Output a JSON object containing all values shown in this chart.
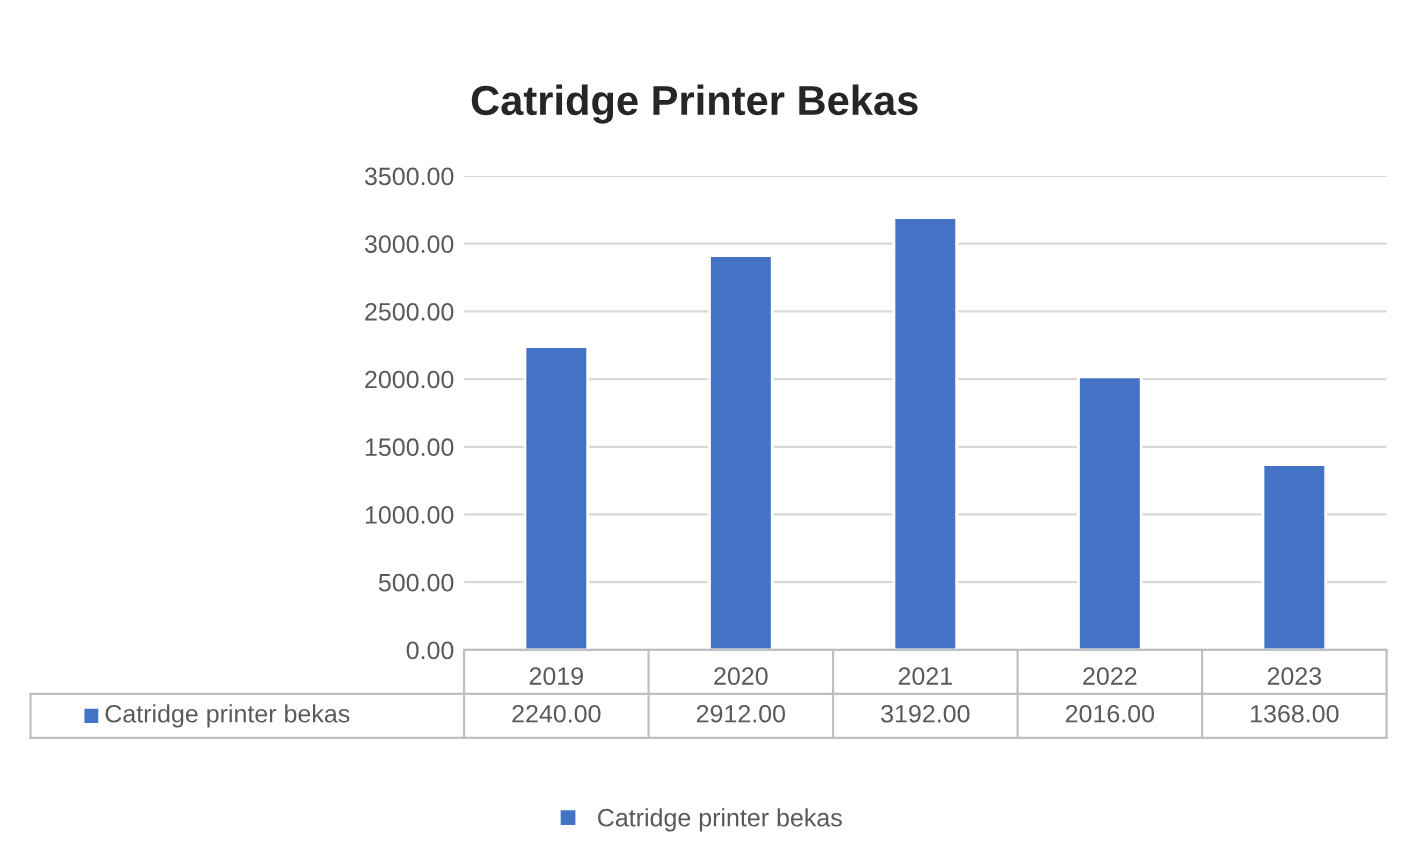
{
  "chart_data": {
    "type": "bar",
    "title": "Catridge Printer Bekas",
    "categories": [
      "2019",
      "2020",
      "2021",
      "2022",
      "2023"
    ],
    "series": [
      {
        "name": "Catridge printer bekas",
        "color": "#4472c4",
        "values": [
          2240,
          2912,
          3192,
          2016,
          1368
        ],
        "value_labels": [
          "2240.00",
          "2912.00",
          "3192.00",
          "2016.00",
          "1368.00"
        ]
      }
    ],
    "ylim": [
      0,
      3500
    ],
    "yticks": [
      {
        "value": 0,
        "label": "0.00"
      },
      {
        "value": 500,
        "label": "500.00"
      },
      {
        "value": 1000,
        "label": "1000.00"
      },
      {
        "value": 1500,
        "label": "1500.00"
      },
      {
        "value": 2000,
        "label": "2000.00"
      },
      {
        "value": 2500,
        "label": "2500.00"
      },
      {
        "value": 3000,
        "label": "3000.00"
      },
      {
        "value": 3500,
        "label": "3500.00"
      }
    ],
    "grid": "y",
    "legend": "bottom"
  }
}
